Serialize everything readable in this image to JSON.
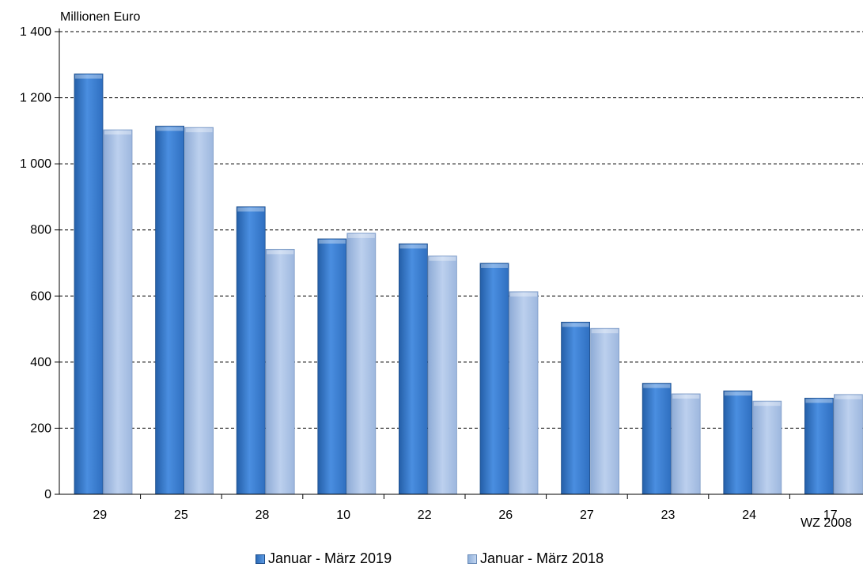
{
  "chart_data": {
    "type": "bar",
    "ylabel": "Millionen Euro",
    "xlabel": "WZ 2008",
    "categories": [
      "29",
      "25",
      "28",
      "10",
      "22",
      "26",
      "27",
      "23",
      "24",
      "17"
    ],
    "series": [
      {
        "name": "Januar - März 2019",
        "values": [
          1272,
          1114,
          870,
          773,
          758,
          699,
          521,
          336,
          313,
          291
        ],
        "color": "#3a7dd0"
      },
      {
        "name": "Januar - März 2018",
        "values": [
          1103,
          1110,
          741,
          790,
          721,
          613,
          502,
          304,
          282,
          302
        ],
        "color": "#a7c2e6"
      }
    ],
    "ylim": [
      0,
      1400
    ],
    "yticks": [
      0,
      200,
      400,
      600,
      800,
      1000,
      1200,
      1400
    ],
    "ytick_labels": [
      "0",
      "200",
      "400",
      "600",
      "800",
      "1 000",
      "1 200",
      "1 400"
    ],
    "grid": true,
    "legend_position": "bottom"
  }
}
